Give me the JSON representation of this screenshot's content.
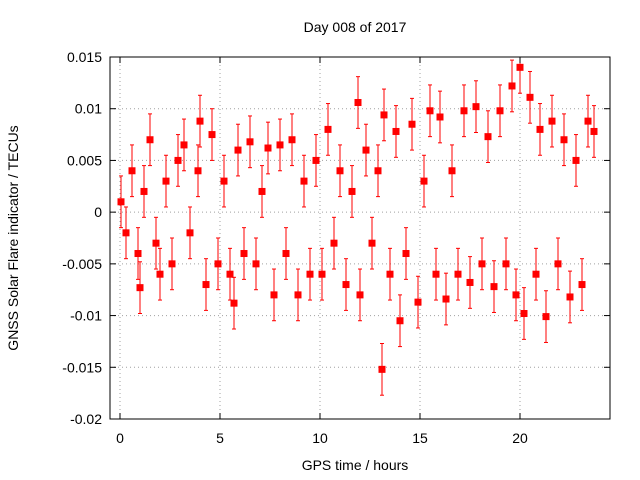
{
  "chart_data": {
    "type": "scatter",
    "title": "Day 008 of 2017",
    "xlabel": "GPS time / hours",
    "ylabel": "GNSS Solar Flare indicator / TECUs",
    "xlim": [
      -0.5,
      24.5
    ],
    "ylim": [
      -0.02,
      0.015
    ],
    "xticks": [
      0,
      5,
      10,
      15,
      20
    ],
    "xtick_labels": [
      "0",
      "5",
      "10",
      "15",
      "20"
    ],
    "yticks": [
      -0.02,
      -0.015,
      -0.01,
      -0.005,
      0,
      0.005,
      0.01,
      0.015
    ],
    "ytick_labels": [
      "-0.02",
      "-0.015",
      "-0.01",
      "-0.005",
      "0",
      "0.005",
      "0.01",
      "0.015"
    ],
    "grid": true,
    "legend": "none",
    "series_color": "#ff0000",
    "series": [
      {
        "x": [
          0.05,
          0.3,
          0.6,
          0.9,
          1.0,
          1.2,
          1.5,
          1.8,
          2.0,
          2.3,
          2.6,
          2.9,
          3.2,
          3.5,
          3.9,
          4.0,
          4.3,
          4.6,
          4.9,
          5.2,
          5.5,
          5.7,
          5.9,
          6.2,
          6.5,
          6.8,
          7.1,
          7.4,
          7.7,
          8.0,
          8.3,
          8.6,
          8.9,
          9.2,
          9.5,
          9.8,
          10.1,
          10.4,
          10.7,
          11.0,
          11.3,
          11.6,
          11.9,
          12.0,
          12.3,
          12.6,
          12.9,
          13.1,
          13.2,
          13.5,
          13.8,
          14.0,
          14.3,
          14.6,
          14.9,
          15.2,
          15.5,
          15.8,
          16.0,
          16.3,
          16.6,
          16.9,
          17.2,
          17.5,
          17.8,
          18.1,
          18.4,
          18.7,
          19.0,
          19.3,
          19.6,
          19.8,
          20.0,
          20.2,
          20.5,
          20.8,
          21.0,
          21.3,
          21.6,
          21.9,
          22.2,
          22.5,
          22.8,
          23.1,
          23.4,
          23.7
        ],
        "y": [
          0.001,
          -0.002,
          0.004,
          -0.004,
          -0.0073,
          0.002,
          0.007,
          -0.003,
          -0.006,
          0.003,
          -0.005,
          0.005,
          0.0065,
          -0.002,
          0.004,
          0.0088,
          -0.007,
          0.0075,
          -0.005,
          0.003,
          -0.006,
          -0.0088,
          0.006,
          -0.004,
          0.0068,
          -0.005,
          0.002,
          0.0062,
          -0.008,
          0.0065,
          -0.004,
          0.007,
          -0.008,
          0.003,
          -0.006,
          0.005,
          -0.006,
          0.008,
          -0.003,
          0.004,
          -0.007,
          0.002,
          0.0106,
          -0.008,
          0.006,
          -0.003,
          0.004,
          -0.0152,
          0.0094,
          -0.006,
          0.0078,
          -0.0105,
          -0.004,
          0.0085,
          -0.0087,
          0.003,
          0.0098,
          -0.006,
          0.0092,
          -0.0084,
          0.004,
          -0.006,
          0.0098,
          -0.0068,
          0.0102,
          -0.005,
          0.0073,
          -0.0072,
          0.0098,
          -0.005,
          0.0122,
          -0.008,
          0.014,
          -0.0098,
          0.0111,
          -0.006,
          0.008,
          -0.0101,
          0.0088,
          -0.005,
          0.007,
          -0.0082,
          0.005,
          -0.007,
          0.0088,
          0.0078
        ],
        "yerr": 0.0025
      }
    ]
  }
}
